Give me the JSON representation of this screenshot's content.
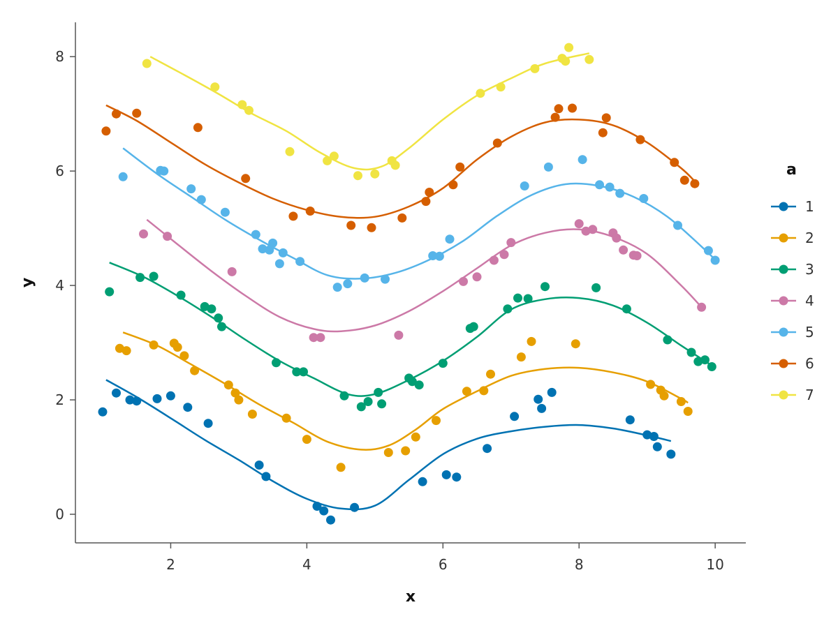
{
  "chart_data": {
    "type": "scatter",
    "title": "",
    "xlabel": "x",
    "ylabel": "y",
    "xlim": [
      0.6,
      10.45
    ],
    "ylim": [
      -0.5,
      8.6
    ],
    "xticks": [
      2,
      4,
      6,
      8,
      10
    ],
    "yticks": [
      0,
      2,
      4,
      6,
      8
    ],
    "grid": false,
    "legend": {
      "title": "a",
      "placement": "right"
    },
    "series": [
      {
        "name": "1",
        "color": "#0072B2",
        "points": [
          [
            1.0,
            1.79
          ],
          [
            1.2,
            2.12
          ],
          [
            1.4,
            2.0
          ],
          [
            1.5,
            1.98
          ],
          [
            1.8,
            2.02
          ],
          [
            2.0,
            2.07
          ],
          [
            2.25,
            1.87
          ],
          [
            2.55,
            1.59
          ],
          [
            3.3,
            0.86
          ],
          [
            3.4,
            0.66
          ],
          [
            4.15,
            0.14
          ],
          [
            4.25,
            0.06
          ],
          [
            4.35,
            -0.1
          ],
          [
            4.7,
            0.12
          ],
          [
            5.7,
            0.57
          ],
          [
            6.05,
            0.69
          ],
          [
            6.2,
            0.65
          ],
          [
            6.65,
            1.15
          ],
          [
            7.05,
            1.71
          ],
          [
            7.4,
            2.01
          ],
          [
            7.45,
            1.85
          ],
          [
            7.6,
            2.13
          ],
          [
            8.75,
            1.65
          ],
          [
            9.0,
            1.39
          ],
          [
            9.1,
            1.36
          ],
          [
            9.15,
            1.18
          ],
          [
            9.35,
            1.05
          ]
        ],
        "smooth": [
          [
            1.05,
            2.35
          ],
          [
            1.5,
            2.05
          ],
          [
            2.0,
            1.68
          ],
          [
            2.5,
            1.3
          ],
          [
            3.0,
            0.95
          ],
          [
            3.5,
            0.58
          ],
          [
            4.0,
            0.27
          ],
          [
            4.5,
            0.1
          ],
          [
            5.0,
            0.15
          ],
          [
            5.5,
            0.6
          ],
          [
            6.0,
            1.05
          ],
          [
            6.5,
            1.32
          ],
          [
            7.0,
            1.45
          ],
          [
            7.5,
            1.53
          ],
          [
            8.0,
            1.56
          ],
          [
            8.5,
            1.5
          ],
          [
            9.0,
            1.38
          ],
          [
            9.35,
            1.28
          ]
        ]
      },
      {
        "name": "2",
        "color": "#E69F00",
        "points": [
          [
            1.25,
            2.9
          ],
          [
            1.35,
            2.86
          ],
          [
            1.75,
            2.96
          ],
          [
            2.05,
            2.99
          ],
          [
            2.1,
            2.92
          ],
          [
            2.2,
            2.77
          ],
          [
            2.35,
            2.51
          ],
          [
            2.85,
            2.26
          ],
          [
            2.95,
            2.12
          ],
          [
            3.0,
            2.0
          ],
          [
            3.2,
            1.75
          ],
          [
            3.7,
            1.68
          ],
          [
            4.0,
            1.31
          ],
          [
            4.5,
            0.82
          ],
          [
            5.2,
            1.08
          ],
          [
            5.45,
            1.11
          ],
          [
            5.6,
            1.35
          ],
          [
            5.9,
            1.64
          ],
          [
            6.35,
            2.15
          ],
          [
            6.6,
            2.16
          ],
          [
            6.7,
            2.45
          ],
          [
            7.15,
            2.75
          ],
          [
            7.3,
            3.02
          ],
          [
            7.95,
            2.98
          ],
          [
            9.05,
            2.27
          ],
          [
            9.2,
            2.17
          ],
          [
            9.25,
            2.07
          ],
          [
            9.5,
            1.97
          ],
          [
            9.6,
            1.8
          ]
        ],
        "smooth": [
          [
            1.3,
            3.18
          ],
          [
            1.8,
            2.95
          ],
          [
            2.3,
            2.62
          ],
          [
            2.8,
            2.28
          ],
          [
            3.3,
            1.92
          ],
          [
            3.8,
            1.6
          ],
          [
            4.3,
            1.27
          ],
          [
            4.8,
            1.13
          ],
          [
            5.2,
            1.2
          ],
          [
            5.6,
            1.48
          ],
          [
            6.0,
            1.84
          ],
          [
            6.5,
            2.15
          ],
          [
            7.0,
            2.42
          ],
          [
            7.5,
            2.54
          ],
          [
            8.0,
            2.56
          ],
          [
            8.5,
            2.48
          ],
          [
            9.0,
            2.32
          ],
          [
            9.5,
            2.02
          ],
          [
            9.6,
            1.95
          ]
        ]
      },
      {
        "name": "3",
        "color": "#009E73",
        "points": [
          [
            1.1,
            3.89
          ],
          [
            1.55,
            4.14
          ],
          [
            1.75,
            4.16
          ],
          [
            2.15,
            3.83
          ],
          [
            2.5,
            3.63
          ],
          [
            2.6,
            3.59
          ],
          [
            2.7,
            3.43
          ],
          [
            2.75,
            3.28
          ],
          [
            3.55,
            2.65
          ],
          [
            3.85,
            2.49
          ],
          [
            3.95,
            2.49
          ],
          [
            4.55,
            2.07
          ],
          [
            4.8,
            1.88
          ],
          [
            4.9,
            1.97
          ],
          [
            5.05,
            2.13
          ],
          [
            5.1,
            1.93
          ],
          [
            5.5,
            2.38
          ],
          [
            5.55,
            2.32
          ],
          [
            5.65,
            2.26
          ],
          [
            6.0,
            2.64
          ],
          [
            6.4,
            3.25
          ],
          [
            6.45,
            3.28
          ],
          [
            6.95,
            3.59
          ],
          [
            7.1,
            3.78
          ],
          [
            7.25,
            3.77
          ],
          [
            7.5,
            3.98
          ],
          [
            8.25,
            3.96
          ],
          [
            8.7,
            3.59
          ],
          [
            9.3,
            3.05
          ],
          [
            9.65,
            2.83
          ],
          [
            9.75,
            2.67
          ],
          [
            9.85,
            2.7
          ],
          [
            9.95,
            2.58
          ]
        ],
        "smooth": [
          [
            1.1,
            4.4
          ],
          [
            1.6,
            4.15
          ],
          [
            2.1,
            3.82
          ],
          [
            2.6,
            3.45
          ],
          [
            3.1,
            3.05
          ],
          [
            3.6,
            2.68
          ],
          [
            4.1,
            2.38
          ],
          [
            4.6,
            2.1
          ],
          [
            5.0,
            2.1
          ],
          [
            5.5,
            2.35
          ],
          [
            6.0,
            2.68
          ],
          [
            6.5,
            3.1
          ],
          [
            7.0,
            3.58
          ],
          [
            7.5,
            3.76
          ],
          [
            8.0,
            3.78
          ],
          [
            8.5,
            3.65
          ],
          [
            9.0,
            3.35
          ],
          [
            9.5,
            2.95
          ],
          [
            9.95,
            2.6
          ]
        ]
      },
      {
        "name": "4",
        "color": "#CC79A7",
        "points": [
          [
            1.6,
            4.9
          ],
          [
            1.95,
            4.86
          ],
          [
            2.9,
            4.24
          ],
          [
            4.1,
            3.09
          ],
          [
            4.2,
            3.09
          ],
          [
            5.35,
            3.13
          ],
          [
            6.3,
            4.07
          ],
          [
            6.5,
            4.15
          ],
          [
            6.75,
            4.44
          ],
          [
            6.9,
            4.54
          ],
          [
            7.0,
            4.75
          ],
          [
            8.0,
            5.08
          ],
          [
            8.1,
            4.95
          ],
          [
            8.2,
            4.98
          ],
          [
            8.5,
            4.92
          ],
          [
            8.55,
            4.83
          ],
          [
            8.65,
            4.62
          ],
          [
            8.8,
            4.53
          ],
          [
            8.85,
            4.52
          ],
          [
            9.8,
            3.62
          ]
        ],
        "smooth": [
          [
            1.65,
            5.15
          ],
          [
            2.1,
            4.72
          ],
          [
            2.6,
            4.25
          ],
          [
            3.1,
            3.82
          ],
          [
            3.6,
            3.45
          ],
          [
            4.1,
            3.24
          ],
          [
            4.5,
            3.2
          ],
          [
            5.0,
            3.3
          ],
          [
            5.5,
            3.55
          ],
          [
            6.0,
            3.9
          ],
          [
            6.5,
            4.3
          ],
          [
            7.0,
            4.7
          ],
          [
            7.5,
            4.92
          ],
          [
            8.0,
            4.98
          ],
          [
            8.5,
            4.85
          ],
          [
            9.0,
            4.55
          ],
          [
            9.5,
            4.0
          ],
          [
            9.8,
            3.62
          ]
        ]
      },
      {
        "name": "5",
        "color": "#56B4E9",
        "points": [
          [
            1.3,
            5.9
          ],
          [
            1.85,
            6.01
          ],
          [
            1.9,
            6.0
          ],
          [
            2.3,
            5.69
          ],
          [
            2.45,
            5.5
          ],
          [
            2.8,
            5.28
          ],
          [
            3.25,
            4.89
          ],
          [
            3.35,
            4.64
          ],
          [
            3.45,
            4.62
          ],
          [
            3.5,
            4.74
          ],
          [
            3.6,
            4.38
          ],
          [
            3.65,
            4.57
          ],
          [
            3.9,
            4.42
          ],
          [
            4.45,
            3.97
          ],
          [
            4.6,
            4.03
          ],
          [
            4.85,
            4.13
          ],
          [
            5.15,
            4.11
          ],
          [
            5.85,
            4.52
          ],
          [
            5.95,
            4.51
          ],
          [
            6.1,
            4.81
          ],
          [
            7.2,
            5.74
          ],
          [
            7.55,
            6.07
          ],
          [
            8.05,
            6.2
          ],
          [
            8.3,
            5.76
          ],
          [
            8.45,
            5.72
          ],
          [
            8.6,
            5.61
          ],
          [
            8.95,
            5.52
          ],
          [
            9.45,
            5.05
          ],
          [
            9.9,
            4.61
          ],
          [
            10.0,
            4.44
          ]
        ],
        "smooth": [
          [
            1.3,
            6.4
          ],
          [
            1.8,
            5.95
          ],
          [
            2.3,
            5.55
          ],
          [
            2.8,
            5.15
          ],
          [
            3.3,
            4.8
          ],
          [
            3.8,
            4.48
          ],
          [
            4.3,
            4.18
          ],
          [
            4.8,
            4.12
          ],
          [
            5.3,
            4.22
          ],
          [
            5.8,
            4.45
          ],
          [
            6.3,
            4.78
          ],
          [
            6.8,
            5.22
          ],
          [
            7.3,
            5.58
          ],
          [
            7.8,
            5.77
          ],
          [
            8.3,
            5.74
          ],
          [
            8.8,
            5.55
          ],
          [
            9.3,
            5.2
          ],
          [
            9.8,
            4.68
          ],
          [
            10.0,
            4.45
          ]
        ]
      },
      {
        "name": "6",
        "color": "#D55E00",
        "points": [
          [
            1.05,
            6.7
          ],
          [
            1.2,
            7.0
          ],
          [
            1.5,
            7.01
          ],
          [
            2.4,
            6.76
          ],
          [
            3.1,
            5.87
          ],
          [
            3.8,
            5.21
          ],
          [
            4.05,
            5.3
          ],
          [
            4.65,
            5.05
          ],
          [
            4.95,
            5.01
          ],
          [
            5.4,
            5.18
          ],
          [
            5.75,
            5.47
          ],
          [
            5.8,
            5.63
          ],
          [
            6.15,
            5.76
          ],
          [
            6.25,
            6.07
          ],
          [
            6.8,
            6.49
          ],
          [
            7.65,
            6.94
          ],
          [
            7.7,
            7.09
          ],
          [
            7.9,
            7.1
          ],
          [
            8.35,
            6.67
          ],
          [
            8.4,
            6.93
          ],
          [
            8.9,
            6.55
          ],
          [
            9.4,
            6.15
          ],
          [
            9.55,
            5.84
          ],
          [
            9.7,
            5.78
          ]
        ],
        "smooth": [
          [
            1.05,
            7.15
          ],
          [
            1.5,
            6.88
          ],
          [
            2.0,
            6.5
          ],
          [
            2.5,
            6.12
          ],
          [
            3.0,
            5.8
          ],
          [
            3.5,
            5.52
          ],
          [
            4.0,
            5.32
          ],
          [
            4.5,
            5.2
          ],
          [
            5.0,
            5.2
          ],
          [
            5.5,
            5.38
          ],
          [
            6.0,
            5.7
          ],
          [
            6.5,
            6.2
          ],
          [
            7.0,
            6.6
          ],
          [
            7.5,
            6.85
          ],
          [
            8.0,
            6.9
          ],
          [
            8.5,
            6.8
          ],
          [
            9.0,
            6.5
          ],
          [
            9.5,
            6.05
          ],
          [
            9.7,
            5.82
          ]
        ]
      },
      {
        "name": "7",
        "color": "#F0E442",
        "points": [
          [
            1.65,
            7.88
          ],
          [
            2.65,
            7.47
          ],
          [
            3.05,
            7.16
          ],
          [
            3.15,
            7.06
          ],
          [
            3.75,
            6.34
          ],
          [
            4.3,
            6.18
          ],
          [
            4.4,
            6.26
          ],
          [
            4.75,
            5.92
          ],
          [
            5.0,
            5.95
          ],
          [
            5.25,
            6.18
          ],
          [
            5.3,
            6.1
          ],
          [
            6.55,
            7.36
          ],
          [
            6.85,
            7.47
          ],
          [
            7.35,
            7.79
          ],
          [
            7.75,
            7.97
          ],
          [
            7.8,
            7.92
          ],
          [
            7.85,
            8.16
          ],
          [
            8.15,
            7.95
          ]
        ],
        "smooth": [
          [
            1.7,
            8.0
          ],
          [
            2.2,
            7.68
          ],
          [
            2.7,
            7.35
          ],
          [
            3.2,
            7.0
          ],
          [
            3.7,
            6.7
          ],
          [
            4.2,
            6.32
          ],
          [
            4.7,
            6.05
          ],
          [
            5.1,
            6.08
          ],
          [
            5.5,
            6.4
          ],
          [
            6.0,
            6.9
          ],
          [
            6.5,
            7.32
          ],
          [
            7.0,
            7.62
          ],
          [
            7.5,
            7.88
          ],
          [
            8.15,
            8.06
          ]
        ]
      }
    ]
  }
}
